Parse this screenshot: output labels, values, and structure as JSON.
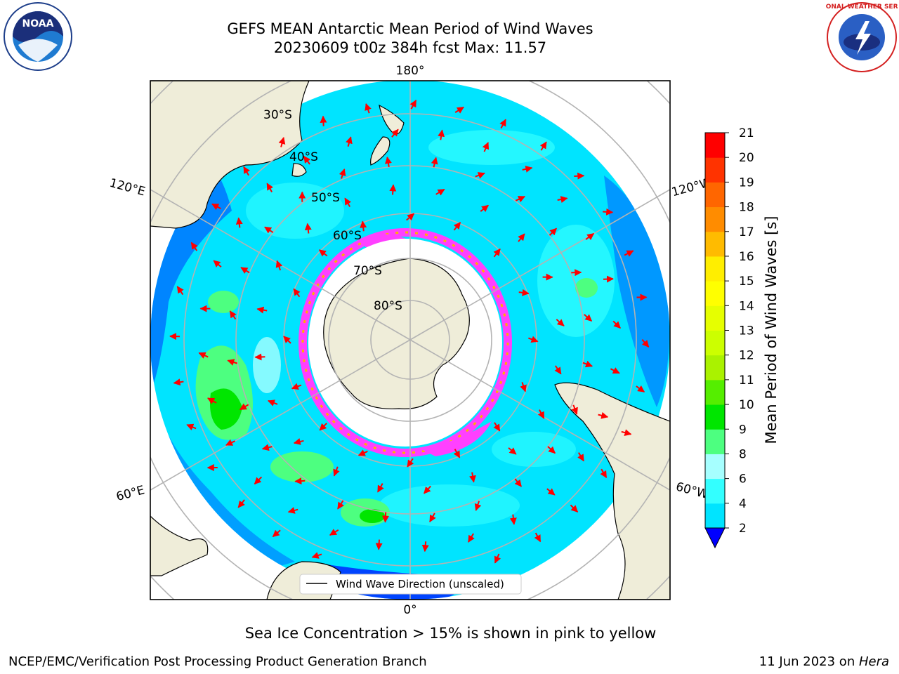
{
  "title": {
    "line1": "GEFS MEAN Antarctic Mean Period of Wind Waves",
    "line2": "20230609 t00z 384h fcst   Max: 11.57"
  },
  "map": {
    "projection": "south polar stereographic",
    "meridian_labels": {
      "top": "180°",
      "bottom": "0°",
      "upper_left": "120°E",
      "lower_left": "60°E",
      "upper_right": "120°W",
      "lower_right": "60°W"
    },
    "parallel_labels": [
      "30°S",
      "40°S",
      "50°S",
      "60°S",
      "70°S",
      "80°S"
    ],
    "legend_label": "Wind Wave Direction (unscaled)",
    "arrow_color": "#ff0000",
    "land_color": "#efedd9",
    "sea_ice_color": "#ff40ff"
  },
  "colorbar": {
    "label": "Mean Period of Wind Waves [s]",
    "ticks": [
      "2",
      "4",
      "6",
      "8",
      "9",
      "10",
      "11",
      "12",
      "13",
      "14",
      "15",
      "16",
      "17",
      "18",
      "19",
      "20",
      "21"
    ],
    "colors": [
      "#0066ff",
      "#00e4ff",
      "#33ffff",
      "#a6ffff",
      "#4dff80",
      "#00e600",
      "#55ee00",
      "#aaf200",
      "#ccff00",
      "#e6ff00",
      "#ffff00",
      "#ffee00",
      "#ffbb00",
      "#ff8c00",
      "#ff6600",
      "#ff3300",
      "#ff0000"
    ],
    "under_color": "#0000ff"
  },
  "caption": "Sea Ice Concentration > 15% is shown in pink to yellow",
  "footer": {
    "left": "NCEP/EMC/Verification Post Processing Product Generation Branch",
    "right_prefix": "11 Jun 2023 on ",
    "right_host": "Hera"
  },
  "logos": {
    "noaa_text": "NOAA",
    "nws_text": "NATIONAL WEATHER SERVICE"
  }
}
